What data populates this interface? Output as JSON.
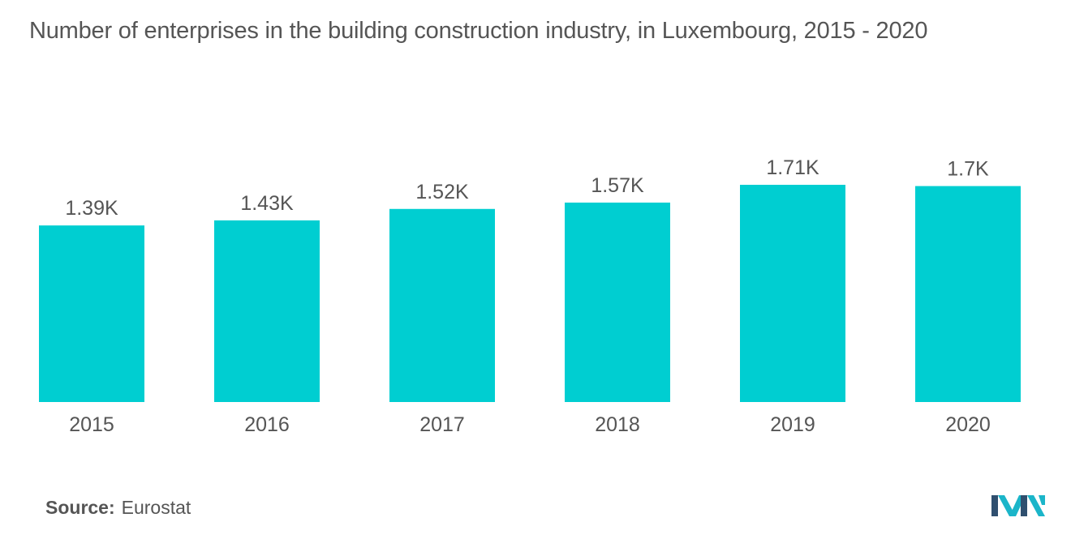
{
  "title": "Number of enterprises in the building construction industry, in Luxembourg, 2015 - 2020",
  "source": {
    "label": "Source:",
    "value": "Eurostat"
  },
  "colors": {
    "bar": "#00CED1",
    "text": "#555555",
    "logo_dark": "#2f4f6f",
    "logo_light": "#1bb5c9"
  },
  "chart_data": {
    "type": "bar",
    "categories": [
      "2015",
      "2016",
      "2017",
      "2018",
      "2019",
      "2020"
    ],
    "values": [
      1390,
      1430,
      1520,
      1570,
      1710,
      1700
    ],
    "data_labels": [
      "1.39K",
      "1.43K",
      "1.52K",
      "1.57K",
      "1.71K",
      "1.7K"
    ],
    "title": "Number of enterprises in the building construction industry, in Luxembourg, 2015 - 2020",
    "xlabel": "",
    "ylabel": "",
    "ylim": [
      0,
      1710
    ],
    "grid": false,
    "legend": "none"
  }
}
